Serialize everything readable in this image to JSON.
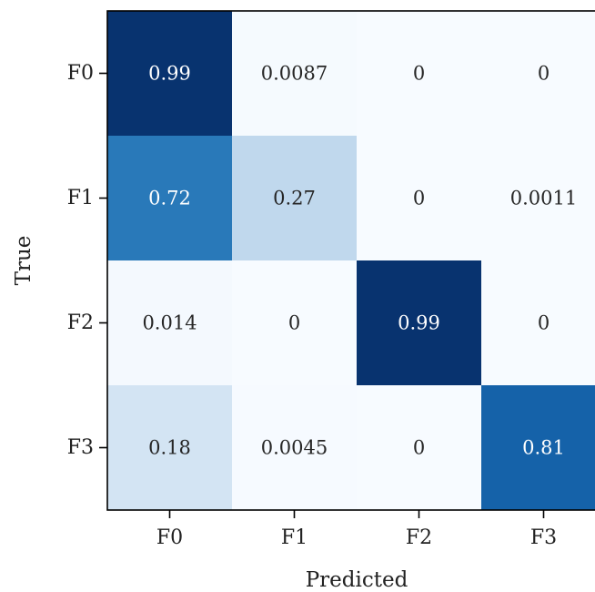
{
  "chart_data": {
    "type": "heatmap",
    "title": "",
    "xlabel": "Predicted",
    "ylabel": "True",
    "x_categories": [
      "F0",
      "F1",
      "F2",
      "F3"
    ],
    "y_categories": [
      "F0",
      "F1",
      "F2",
      "F3"
    ],
    "values": [
      [
        0.99,
        0.0087,
        0,
        0
      ],
      [
        0.72,
        0.27,
        0,
        0.0011
      ],
      [
        0.014,
        0,
        0.99,
        0
      ],
      [
        0.18,
        0.0045,
        0,
        0.81
      ]
    ],
    "cell_labels": [
      [
        "0.99",
        "0.0087",
        "0",
        "0"
      ],
      [
        "0.72",
        "0.27",
        "0",
        "0.0011"
      ],
      [
        "0.014",
        "0",
        "0.99",
        "0"
      ],
      [
        "0.18",
        "0.0045",
        "0",
        "0.81"
      ]
    ],
    "value_range": [
      0,
      1
    ],
    "colormap": "Blues",
    "colorbar": false,
    "grid": false
  }
}
